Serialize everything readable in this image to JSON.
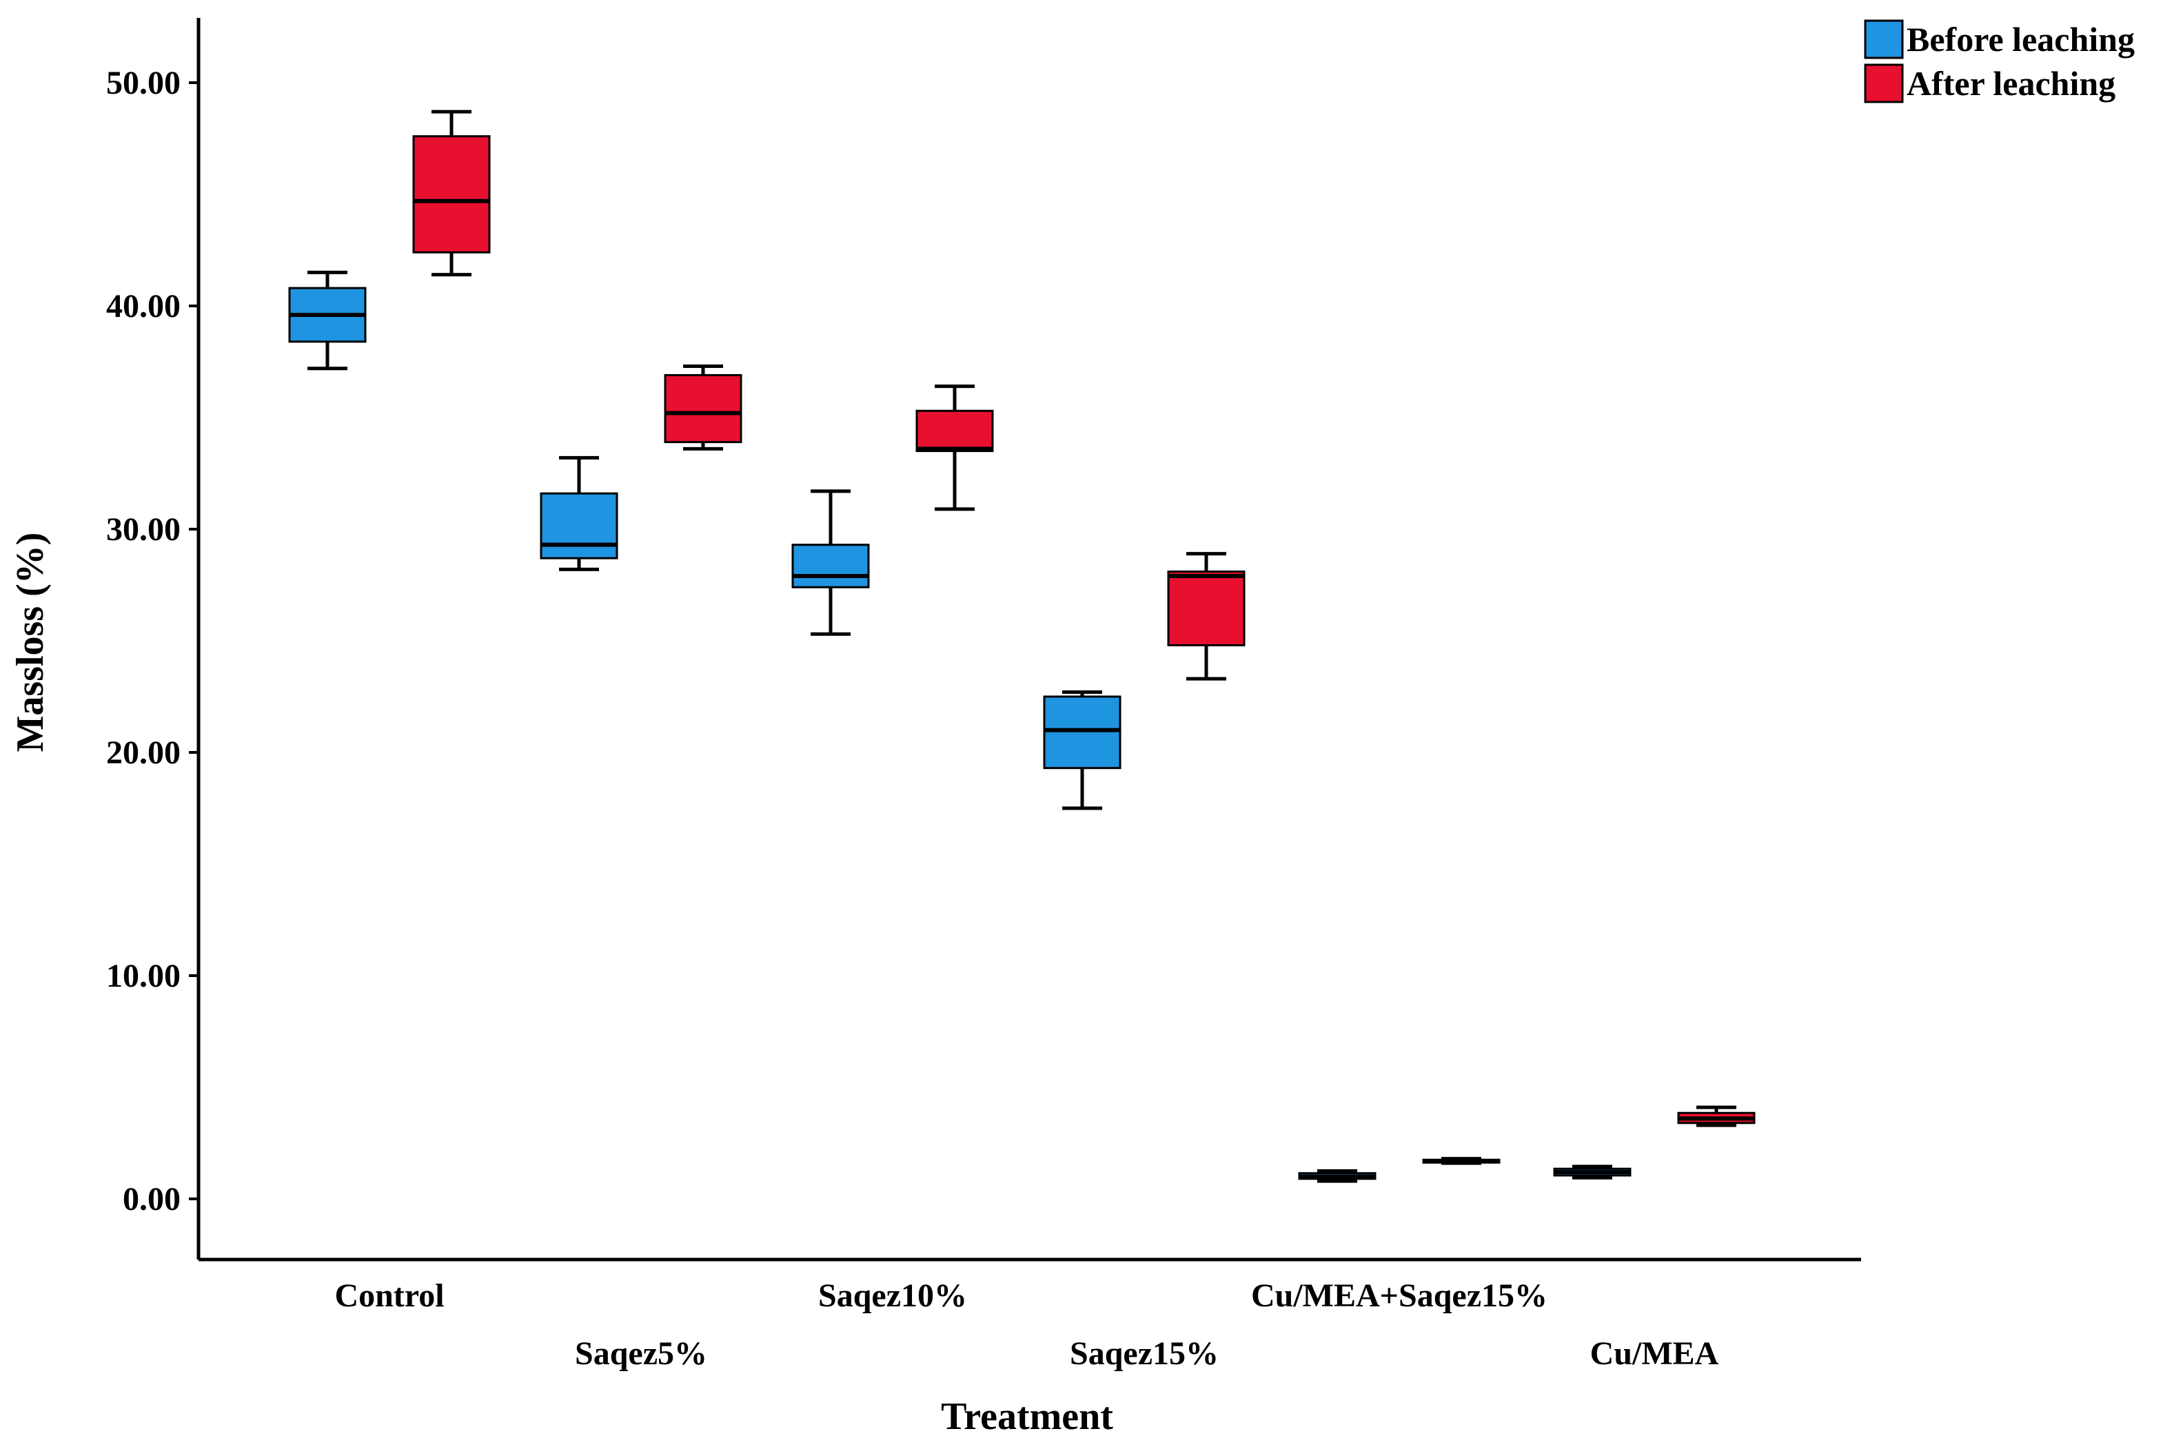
{
  "chart_data": {
    "type": "boxplot",
    "title": "",
    "xlabel": "Treatment",
    "ylabel": "Massloss (%)",
    "ylim": [
      -2.8,
      53
    ],
    "yticks": [
      0,
      10,
      20,
      30,
      40,
      50
    ],
    "ytick_labels": [
      "0.00",
      "10.00",
      "20.00",
      "30.00",
      "40.00",
      "50.00"
    ],
    "grid": false,
    "legend_position": "top-right",
    "categories": [
      "Control",
      "Saqez5%",
      "Saqez10%",
      "Saqez15%",
      "Cu/MEA+Saqez15%",
      "Cu/MEA"
    ],
    "series": [
      {
        "name": "Before leaching",
        "color": "#1f94e0",
        "boxes": [
          {
            "min": 37.2,
            "q1": 38.4,
            "median": 39.6,
            "q3": 40.8,
            "max": 41.5
          },
          {
            "min": 28.2,
            "q1": 28.7,
            "median": 29.3,
            "q3": 31.6,
            "max": 33.2
          },
          {
            "min": 25.3,
            "q1": 27.4,
            "median": 27.9,
            "q3": 29.3,
            "max": 31.7
          },
          {
            "min": 17.5,
            "q1": 19.3,
            "median": 21.0,
            "q3": 22.5,
            "max": 22.7
          },
          {
            "min": 0.8,
            "q1": 0.9,
            "median": 1.0,
            "q3": 1.15,
            "max": 1.25
          },
          {
            "min": 0.95,
            "q1": 1.05,
            "median": 1.2,
            "q3": 1.35,
            "max": 1.45
          }
        ]
      },
      {
        "name": "After leaching",
        "color": "#e8102f",
        "boxes": [
          {
            "min": 41.4,
            "q1": 42.4,
            "median": 44.7,
            "q3": 47.6,
            "max": 48.7
          },
          {
            "min": 33.6,
            "q1": 33.9,
            "median": 35.2,
            "q3": 36.9,
            "max": 37.3
          },
          {
            "min": 30.9,
            "q1": 33.5,
            "median": 33.6,
            "q3": 35.3,
            "max": 36.4
          },
          {
            "min": 23.3,
            "q1": 24.8,
            "median": 27.9,
            "q3": 28.1,
            "max": 28.9
          },
          {
            "min": 1.6,
            "q1": 1.65,
            "median": 1.7,
            "q3": 1.75,
            "max": 1.8
          },
          {
            "min": 3.3,
            "q1": 3.4,
            "median": 3.6,
            "q3": 3.85,
            "max": 4.1
          }
        ]
      }
    ]
  }
}
